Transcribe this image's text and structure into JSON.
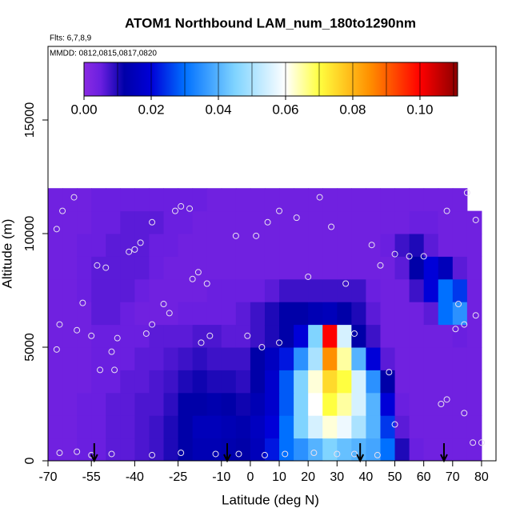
{
  "chart_data": {
    "type": "heatmap",
    "title": "ATOM1 Northbound LAM_num_180to1290nm",
    "subtitle": "Flts: 6,7,8,9",
    "annotation": "MMDD: 0812,0815,0817,0820",
    "x_label": "Latitude (deg N)",
    "y_label": "Altitude (m)",
    "xlim": [
      -70,
      85
    ],
    "ylim": [
      0,
      18240
    ],
    "xticks": [
      -70,
      -55,
      -40,
      -25,
      -10,
      0,
      10,
      20,
      30,
      40,
      50,
      60,
      70,
      80
    ],
    "yticks": [
      0,
      5000,
      10000,
      15000
    ],
    "x_bins": [
      -70,
      -65,
      -60,
      -55,
      -50,
      -45,
      -40,
      -35,
      -30,
      -25,
      -20,
      -15,
      -10,
      -5,
      0,
      5,
      10,
      15,
      20,
      25,
      30,
      35,
      40,
      45,
      50,
      55,
      60,
      65,
      70,
      75,
      80
    ],
    "y_bins": [
      0,
      1000,
      2000,
      3000,
      4000,
      5000,
      6000,
      7000,
      8000,
      9000,
      10000,
      11000,
      12000
    ],
    "z": [
      [
        0.004,
        0.004,
        0.005,
        0.005,
        0.006,
        0.006,
        0.007,
        0.008,
        0.01,
        0.012,
        0.014,
        0.014,
        0.013,
        0.012,
        0.015,
        0.022,
        0.03,
        0.035,
        0.04,
        0.045,
        0.042,
        0.04,
        0.038,
        0.03,
        0.01,
        0.005,
        0.004,
        0.004,
        0.004,
        0.004
      ],
      [
        0.004,
        0.004,
        0.005,
        0.005,
        0.006,
        0.006,
        0.007,
        0.008,
        0.01,
        0.012,
        0.015,
        0.015,
        0.014,
        0.013,
        0.016,
        0.02,
        0.03,
        0.045,
        0.055,
        0.062,
        0.058,
        0.05,
        0.04,
        0.025,
        0.006,
        0.004,
        0.004,
        0.004,
        0.004,
        0.004
      ],
      [
        0.004,
        0.004,
        0.005,
        0.005,
        0.006,
        0.006,
        0.007,
        0.007,
        0.009,
        0.012,
        0.012,
        0.013,
        0.012,
        0.011,
        0.014,
        0.018,
        0.028,
        0.045,
        0.06,
        0.07,
        0.065,
        0.055,
        0.04,
        0.02,
        0.005,
        0.004,
        0.004,
        0.004,
        0.004,
        0.004
      ],
      [
        0.004,
        0.004,
        0.004,
        0.005,
        0.005,
        0.006,
        0.006,
        0.007,
        0.008,
        0.01,
        0.011,
        0.01,
        0.01,
        0.009,
        0.012,
        0.018,
        0.028,
        0.045,
        0.062,
        0.075,
        0.07,
        0.055,
        0.035,
        0.012,
        0.004,
        0.004,
        0.004,
        0.004,
        0.004,
        0.004
      ],
      [
        0.004,
        0.004,
        0.004,
        0.005,
        0.005,
        0.005,
        0.006,
        0.006,
        0.007,
        0.008,
        0.009,
        0.008,
        0.008,
        0.008,
        0.012,
        0.016,
        0.022,
        0.035,
        0.05,
        0.085,
        0.065,
        0.04,
        0.02,
        0.006,
        0.004,
        0.004,
        0.004,
        0.004,
        0.004,
        0.004
      ],
      [
        0.004,
        0.004,
        0.004,
        0.005,
        0.005,
        0.005,
        0.005,
        0.006,
        0.006,
        0.006,
        0.007,
        0.007,
        0.006,
        0.006,
        0.008,
        0.01,
        0.012,
        0.02,
        0.045,
        0.1,
        0.055,
        0.012,
        0.008,
        0.004,
        0.004,
        0.004,
        0.004,
        0.004,
        0.005,
        0.004
      ],
      [
        0.004,
        0.004,
        0.004,
        0.006,
        0.006,
        0.005,
        0.004,
        0.004,
        0.004,
        0.005,
        0.005,
        0.005,
        0.005,
        0.006,
        0.008,
        0.01,
        0.012,
        0.012,
        0.014,
        0.015,
        0.012,
        0.01,
        0.006,
        0.004,
        0.004,
        0.004,
        0.006,
        0.03,
        0.035,
        0.004
      ],
      [
        0.004,
        0.004,
        0.005,
        0.006,
        0.006,
        0.006,
        0.005,
        0.004,
        0.004,
        0.004,
        0.004,
        0.005,
        0.005,
        0.005,
        0.005,
        0.006,
        0.008,
        0.008,
        0.008,
        0.008,
        0.008,
        0.008,
        0.005,
        0.004,
        0.004,
        0.008,
        0.02,
        0.03,
        0.025,
        0.004
      ],
      [
        0.004,
        0.004,
        0.005,
        0.006,
        0.006,
        0.006,
        0.006,
        0.005,
        0.004,
        0.004,
        0.004,
        0.004,
        0.004,
        0.004,
        0.004,
        0.004,
        0.004,
        0.004,
        0.004,
        0.004,
        0.004,
        0.004,
        0.004,
        0.004,
        0.006,
        0.012,
        0.02,
        0.015,
        0.006,
        0.004
      ],
      [
        0.004,
        0.004,
        0.005,
        0.005,
        0.006,
        0.006,
        0.006,
        0.005,
        0.005,
        0.004,
        0.004,
        0.004,
        0.004,
        0.004,
        0.004,
        0.004,
        0.004,
        0.004,
        0.004,
        0.004,
        0.004,
        0.004,
        0.004,
        0.005,
        0.008,
        0.01,
        0.006,
        0.004,
        0.004,
        0.004
      ],
      [
        0.004,
        0.004,
        0.004,
        0.005,
        0.005,
        0.006,
        0.006,
        0.006,
        0.005,
        0.005,
        0.004,
        0.004,
        0.004,
        0.004,
        0.004,
        0.004,
        0.004,
        0.004,
        0.004,
        0.004,
        0.004,
        0.004,
        0.004,
        0.004,
        0.004,
        0.005,
        0.005,
        0.004,
        0.004,
        0.004
      ],
      [
        0.004,
        0.004,
        0.004,
        0.005,
        0.005,
        0.005,
        0.005,
        0.005,
        0.005,
        0.005,
        0.005,
        0.004,
        0.004,
        0.004,
        0.004,
        0.004,
        0.004,
        0.004,
        0.004,
        0.004,
        0.004,
        0.004,
        0.004,
        0.004,
        0.004,
        0.004,
        0.004,
        0.004,
        0.004,
        null
      ]
    ],
    "colorscale": [
      [
        0,
        "#8a2be2"
      ],
      [
        0.005,
        "#6a1fe0"
      ],
      [
        0.012,
        "#0000a8"
      ],
      [
        0.02,
        "#0000d8"
      ],
      [
        0.03,
        "#0070ff"
      ],
      [
        0.045,
        "#80d4ff"
      ],
      [
        0.06,
        "#ffffff"
      ],
      [
        0.07,
        "#ffff40"
      ],
      [
        0.085,
        "#ff9000"
      ],
      [
        0.1,
        "#ff0000"
      ],
      [
        0.1112,
        "#8b0000"
      ]
    ],
    "colorbar_lim": [
      0,
      0.1112
    ],
    "colorbar_ticks": [
      {
        "value": 0,
        "label": "0.00"
      },
      {
        "value": 0.02,
        "label": "0.02"
      },
      {
        "value": 0.04,
        "label": "0.04"
      },
      {
        "value": 0.06,
        "label": "0.06"
      },
      {
        "value": 0.08,
        "label": "0.08"
      },
      {
        "value": 0.1,
        "label": "0.10"
      }
    ],
    "colorbar_levels": [
      0.01,
      0.02,
      0.03,
      0.04,
      0.05,
      0.06,
      0.07,
      0.08,
      0.09,
      0.1,
      0.11
    ],
    "points": {
      "x": [
        -67,
        -66,
        -67,
        -65,
        -61,
        -58,
        -60,
        -55,
        -53,
        -50,
        -48,
        -47,
        -52,
        -46,
        -42,
        -40,
        -38,
        -36,
        -34,
        -34,
        -30,
        -28,
        -26,
        -24,
        -21,
        -20,
        -18,
        -15,
        -17,
        -14,
        -5,
        2,
        -1,
        4,
        6,
        10,
        10,
        16,
        20,
        24,
        28,
        33,
        36,
        42,
        45,
        50,
        55,
        60,
        68,
        72,
        71,
        74,
        78,
        75,
        78,
        68,
        66,
        74,
        77,
        80,
        -66,
        -60,
        -55,
        -48,
        -34,
        -24,
        -12,
        -4,
        5,
        12,
        22,
        30,
        36,
        44,
        50,
        48
      ],
      "y": [
        10200,
        6000,
        4900,
        11000,
        11600,
        6950,
        5750,
        5500,
        8600,
        8500,
        4800,
        4000,
        4000,
        5400,
        9200,
        9300,
        9600,
        5600,
        6000,
        10500,
        6900,
        6500,
        11000,
        11200,
        11100,
        8000,
        8300,
        7800,
        5200,
        5500,
        9900,
        9900,
        5500,
        5000,
        10500,
        11000,
        5200,
        10700,
        8100,
        11600,
        10300,
        7800,
        5600,
        9500,
        8600,
        9100,
        9000,
        9000,
        11000,
        6900,
        5800,
        6000,
        6400,
        11800,
        10600,
        2700,
        2500,
        2100,
        800,
        800,
        350,
        400,
        250,
        300,
        250,
        350,
        300,
        300,
        250,
        300,
        350,
        300,
        300,
        250,
        1600,
        3900
      ]
    },
    "arrows": [
      -54,
      -8,
      38,
      67
    ]
  }
}
